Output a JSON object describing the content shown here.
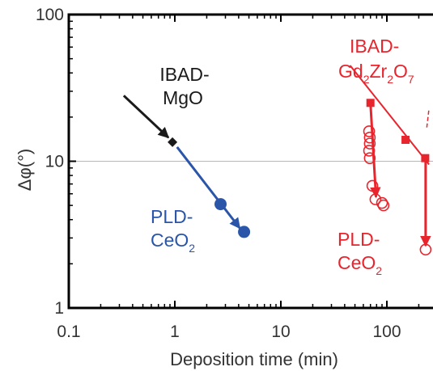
{
  "chart_data": {
    "type": "scatter",
    "title": "",
    "xlabel": "Deposition time (min)",
    "ylabel": "Δφ(°)",
    "xscale": "log",
    "yscale": "log",
    "xlim": [
      0.1,
      250
    ],
    "ylim": [
      1,
      100
    ],
    "x_ticks": [
      "0.1",
      "1",
      "10",
      "100"
    ],
    "y_ticks": [
      "1",
      "10",
      "100"
    ],
    "grid": "horizontal line at 10",
    "colors": {
      "black": "#1a1a1a",
      "blue": "#2a55a8",
      "red": "#e8242d",
      "grid": "#b8b8b8",
      "axis": "#000000"
    },
    "series": [
      {
        "name": "IBAD-MgO",
        "color": "#1a1a1a",
        "marker": "diamond",
        "points": [
          {
            "x": 0.95,
            "y": 13.5
          }
        ],
        "arrows": [
          {
            "from": [
              0.33,
              28
            ],
            "to": [
              0.87,
              14.5
            ]
          }
        ]
      },
      {
        "name": "PLD-CeO2",
        "color": "#2a55a8",
        "marker": "circle-filled",
        "points": [
          {
            "x": 2.7,
            "y": 5.1
          },
          {
            "x": 4.5,
            "y": 3.3
          }
        ],
        "arrows": [
          {
            "from": [
              1.05,
              12.5
            ],
            "to": [
              4.1,
              3.5
            ]
          }
        ]
      },
      {
        "name": "IBAD-Gd2Zr2O7",
        "color": "#e8242d",
        "marker": "square-filled",
        "points": [
          {
            "x": 70,
            "y": 25
          },
          {
            "x": 150,
            "y": 14
          },
          {
            "x": 230,
            "y": 10.5
          }
        ],
        "lines": [
          {
            "from": [
              45,
              45
            ],
            "to": [
              250,
              9.5
            ]
          }
        ],
        "dashed": [
          {
            "from": [
              238,
              17
            ],
            "to": [
              250,
              23
            ]
          }
        ]
      },
      {
        "name": "PLD-CeO2",
        "color": "#e8242d",
        "marker": "circle-open",
        "points": [
          {
            "x": 68,
            "y": 16
          },
          {
            "x": 69,
            "y": 14.5
          },
          {
            "x": 69,
            "y": 13.2
          },
          {
            "x": 68,
            "y": 11.8
          },
          {
            "x": 69,
            "y": 10.5
          },
          {
            "x": 73,
            "y": 6.8
          },
          {
            "x": 78,
            "y": 5.5
          },
          {
            "x": 90,
            "y": 5.2
          },
          {
            "x": 93,
            "y": 5.0
          },
          {
            "x": 232,
            "y": 2.5
          }
        ],
        "arrows": [
          {
            "from": [
              70,
              25
            ],
            "to": [
              79,
              5.7
            ]
          },
          {
            "from": [
              232,
              10.5
            ],
            "to": [
              232,
              2.65
            ]
          }
        ]
      }
    ],
    "annotations": [
      {
        "id": "mgo",
        "lines": [
          "IBAD-",
          "MgO"
        ],
        "color": "#1a1a1a"
      },
      {
        "id": "blue_ceo2",
        "lines": [
          "PLD-",
          "CeO",
          "2"
        ],
        "color": "#2a55a8"
      },
      {
        "id": "gzo",
        "line1": "IBAD-",
        "parts": [
          "Gd",
          "2",
          "Zr",
          "2",
          "O",
          "7"
        ],
        "color": "#e8242d"
      },
      {
        "id": "red_ceo2",
        "lines": [
          "PLD-",
          "CeO",
          "2"
        ],
        "color": "#e8242d"
      }
    ]
  }
}
